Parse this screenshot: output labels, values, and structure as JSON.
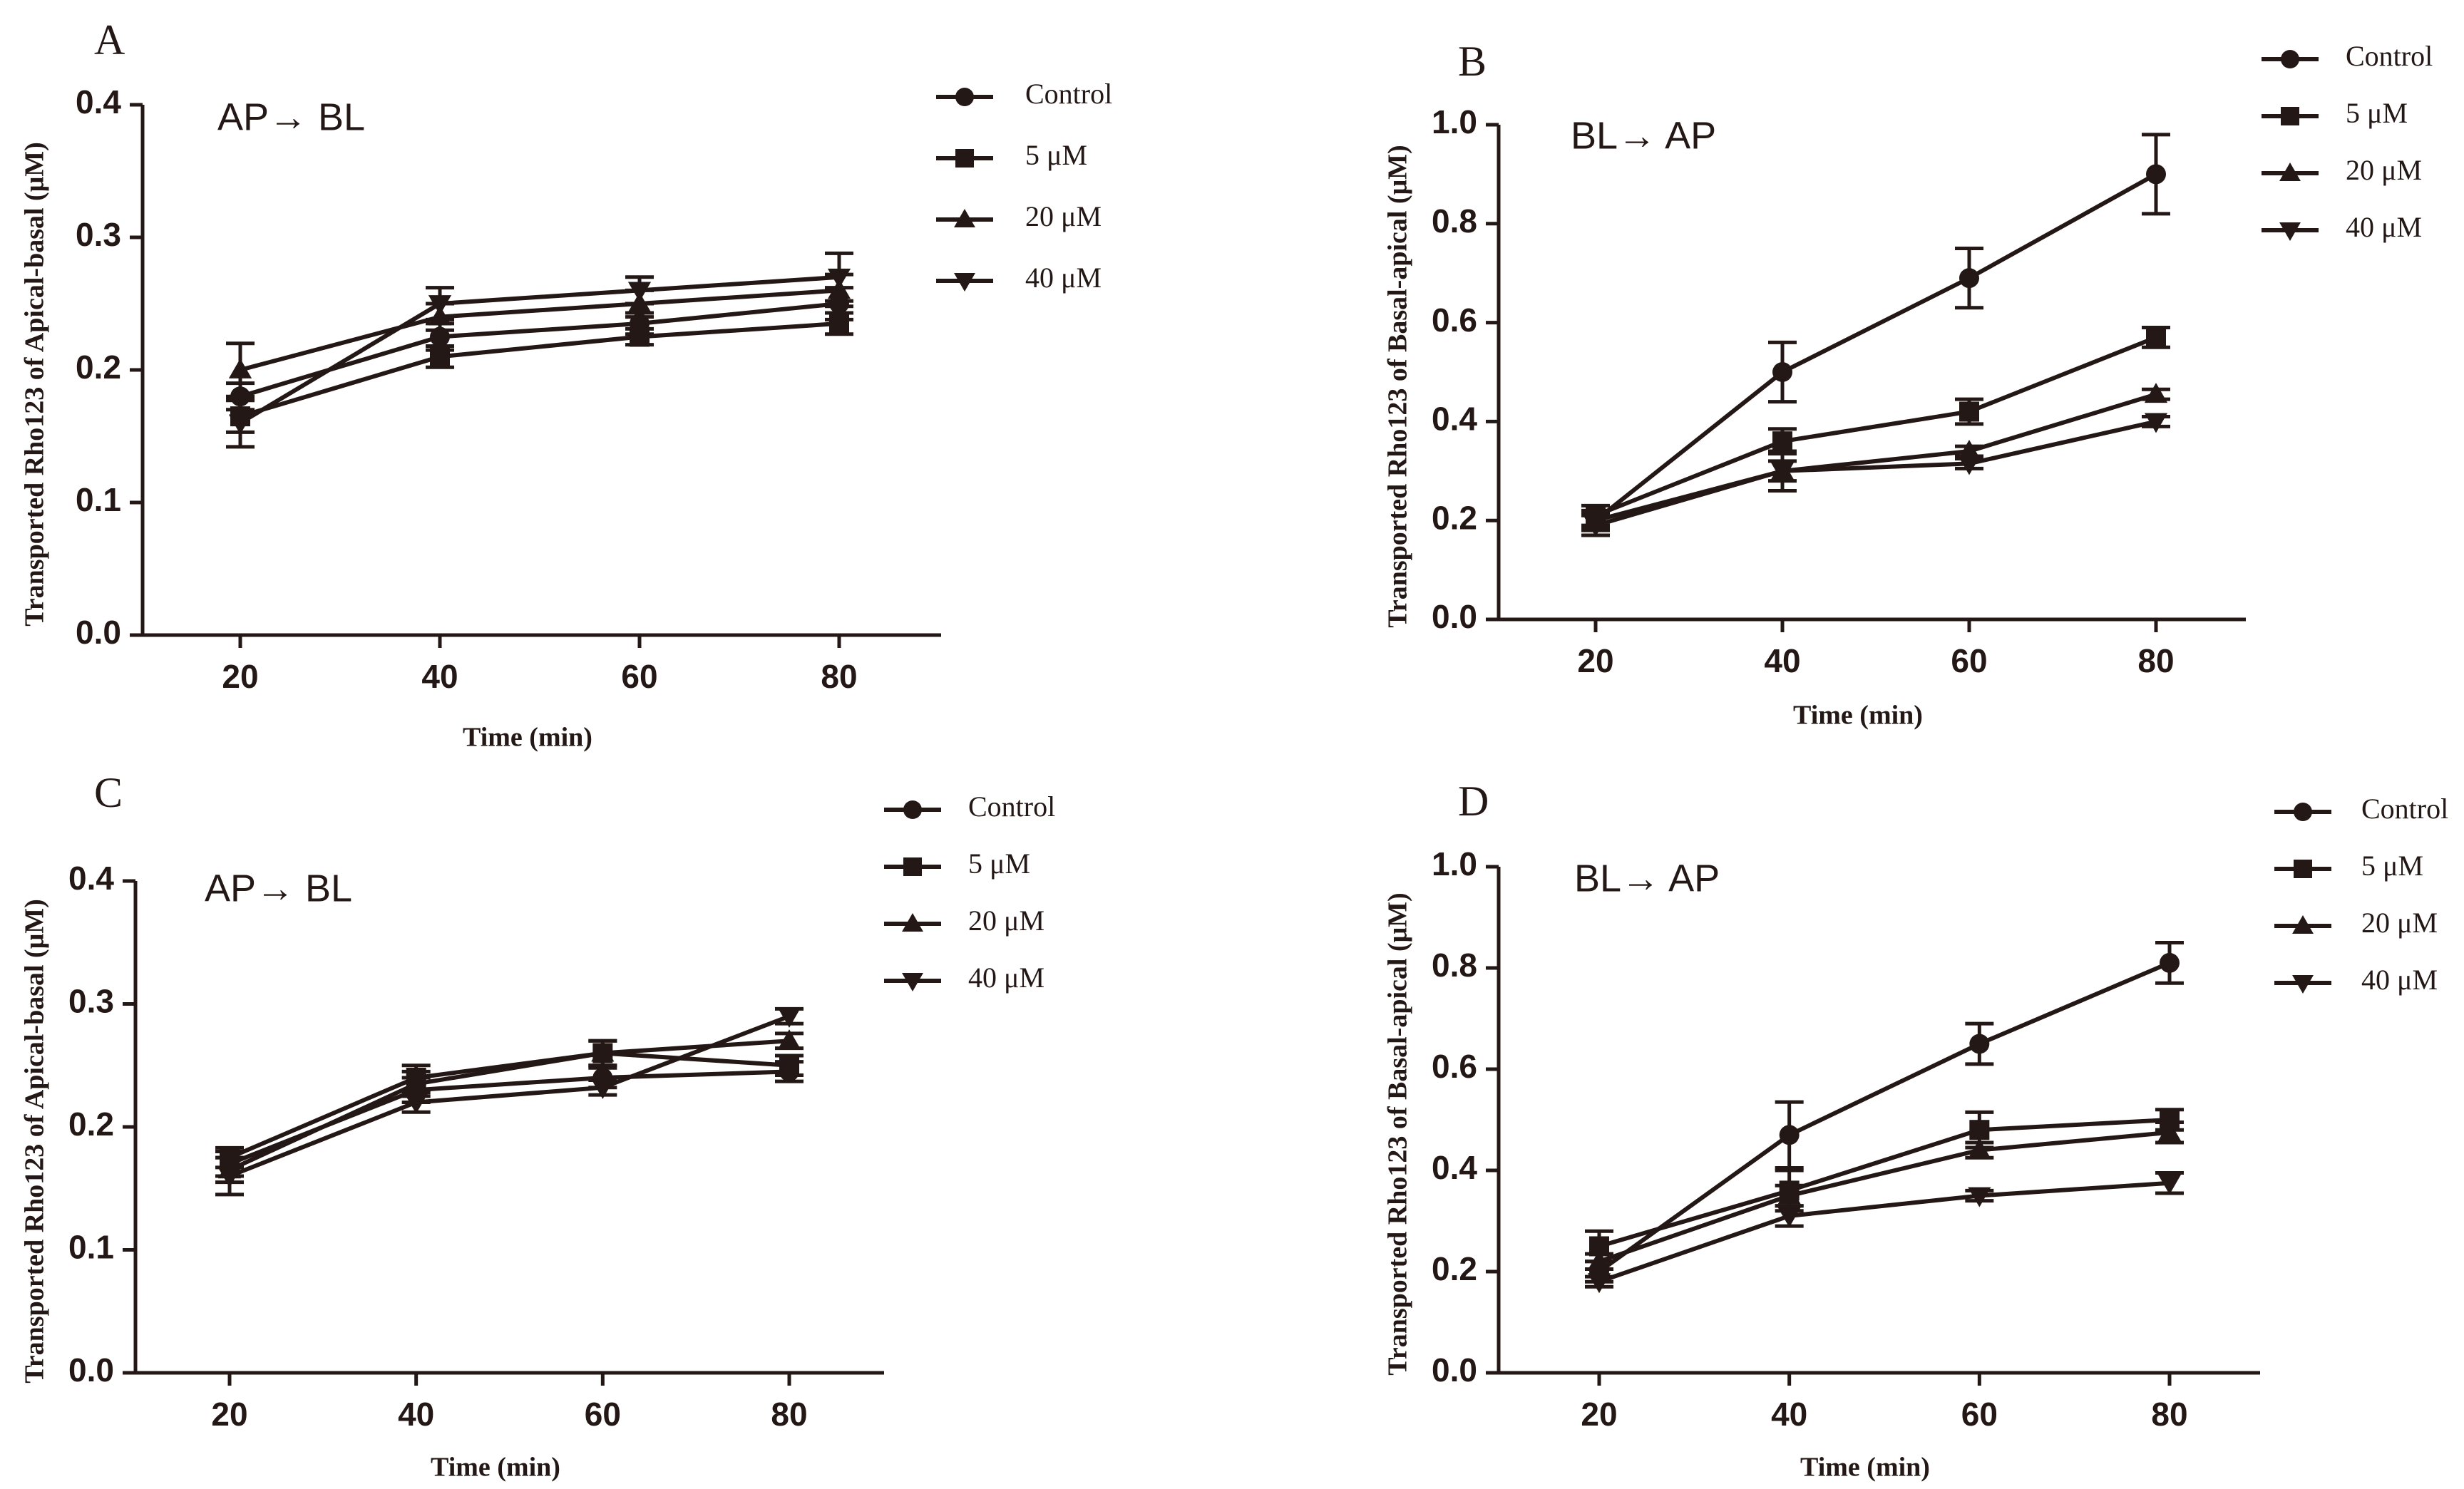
{
  "chart_data": [
    {
      "panel": "A",
      "type": "line",
      "annotation": "AP→ BL",
      "xlabel": "Time (min)",
      "ylabel": "Transported Rho123 of Apical-basal (μM)",
      "x": [
        20,
        40,
        60,
        80
      ],
      "xticks": [
        "20",
        "40",
        "60",
        "80"
      ],
      "ylim": [
        0,
        0.4
      ],
      "yticks": [
        "0.0",
        "0.1",
        "0.2",
        "0.3",
        "0.4"
      ],
      "ytick_values": [
        0,
        0.1,
        0.2,
        0.3,
        0.4
      ],
      "grid": false,
      "legend_position": "right",
      "series": [
        {
          "name": "Control",
          "marker": "circle",
          "values": [
            0.18,
            0.225,
            0.235,
            0.25
          ],
          "errors": [
            0.01,
            0.01,
            0.008,
            0.012
          ]
        },
        {
          "name": "5 μM",
          "marker": "square",
          "values": [
            0.165,
            0.21,
            0.225,
            0.235
          ],
          "errors": [
            0.012,
            0.008,
            0.006,
            0.008
          ]
        },
        {
          "name": "20 μM",
          "marker": "triangle-up",
          "values": [
            0.2,
            0.24,
            0.25,
            0.26
          ],
          "errors": [
            0.02,
            0.01,
            0.01,
            0.012
          ]
        },
        {
          "name": "40 μM",
          "marker": "triangle-down",
          "values": [
            0.16,
            0.25,
            0.26,
            0.27
          ],
          "errors": [
            0.018,
            0.012,
            0.01,
            0.018
          ]
        }
      ]
    },
    {
      "panel": "B",
      "type": "line",
      "annotation": "BL→ AP",
      "xlabel": "Time (min)",
      "ylabel": "Transported Rho123 of Basal-apical (μM)",
      "x": [
        20,
        40,
        60,
        80
      ],
      "xticks": [
        "20",
        "40",
        "60",
        "80"
      ],
      "ylim": [
        0,
        1.0
      ],
      "yticks": [
        "0.0",
        "0.2",
        "0.4",
        "0.6",
        "0.8",
        "1.0"
      ],
      "ytick_values": [
        0,
        0.2,
        0.4,
        0.6,
        0.8,
        1.0
      ],
      "grid": false,
      "legend_position": "top-right",
      "series": [
        {
          "name": "Control",
          "marker": "circle",
          "values": [
            0.2,
            0.5,
            0.69,
            0.9
          ],
          "errors": [
            0.02,
            0.06,
            0.06,
            0.08
          ]
        },
        {
          "name": "5 μM",
          "marker": "square",
          "values": [
            0.21,
            0.36,
            0.42,
            0.57
          ],
          "errors": [
            0.02,
            0.025,
            0.025,
            0.02
          ]
        },
        {
          "name": "20 μM",
          "marker": "triangle-up",
          "values": [
            0.2,
            0.3,
            0.34,
            0.455
          ],
          "errors": [
            0.015,
            0.02,
            0.01,
            0.01
          ]
        },
        {
          "name": "40 μM",
          "marker": "triangle-down",
          "values": [
            0.19,
            0.3,
            0.315,
            0.4
          ],
          "errors": [
            0.02,
            0.04,
            0.01,
            0.01
          ]
        }
      ]
    },
    {
      "panel": "C",
      "type": "line",
      "annotation": "AP→ BL",
      "xlabel": "Time (min)",
      "ylabel": "Transported Rho123 of Apical-basal (μM)",
      "x": [
        20,
        40,
        60,
        80
      ],
      "xticks": [
        "20",
        "40",
        "60",
        "80"
      ],
      "ylim": [
        0,
        0.4
      ],
      "yticks": [
        "0.0",
        "0.1",
        "0.2",
        "0.3",
        "0.4"
      ],
      "ytick_values": [
        0,
        0.1,
        0.2,
        0.3,
        0.4
      ],
      "grid": false,
      "legend_position": "right",
      "series": [
        {
          "name": "Control",
          "marker": "circle",
          "values": [
            0.17,
            0.23,
            0.24,
            0.245
          ],
          "errors": [
            0.01,
            0.01,
            0.008,
            0.008
          ]
        },
        {
          "name": "5 μM",
          "marker": "square",
          "values": [
            0.175,
            0.24,
            0.26,
            0.25
          ],
          "errors": [
            0.008,
            0.01,
            0.01,
            0.008
          ]
        },
        {
          "name": "20 μM",
          "marker": "triangle-up",
          "values": [
            0.165,
            0.235,
            0.26,
            0.27
          ],
          "errors": [
            0.01,
            0.01,
            0.01,
            0.006
          ]
        },
        {
          "name": "40 μM",
          "marker": "triangle-down",
          "values": [
            0.16,
            0.22,
            0.232,
            0.29
          ],
          "errors": [
            0.015,
            0.008,
            0.006,
            0.006
          ]
        }
      ]
    },
    {
      "panel": "D",
      "type": "line",
      "annotation": "BL→ AP",
      "xlabel": "Time (min)",
      "ylabel": "Transported Rho123 of Basal-apical (μM)",
      "x": [
        20,
        40,
        60,
        80
      ],
      "xticks": [
        "20",
        "40",
        "60",
        "80"
      ],
      "ylim": [
        0,
        1.0
      ],
      "yticks": [
        "0.0",
        "0.2",
        "0.4",
        "0.6",
        "0.8",
        "1.0"
      ],
      "ytick_values": [
        0,
        0.2,
        0.4,
        0.6,
        0.8,
        1.0
      ],
      "grid": false,
      "legend_position": "top-right",
      "series": [
        {
          "name": "Control",
          "marker": "circle",
          "values": [
            0.2,
            0.47,
            0.65,
            0.81
          ],
          "errors": [
            0.02,
            0.065,
            0.04,
            0.04
          ]
        },
        {
          "name": "5 μM",
          "marker": "square",
          "values": [
            0.25,
            0.36,
            0.48,
            0.5
          ],
          "errors": [
            0.03,
            0.04,
            0.035,
            0.02
          ]
        },
        {
          "name": "20 μM",
          "marker": "triangle-up",
          "values": [
            0.22,
            0.35,
            0.44,
            0.475
          ],
          "errors": [
            0.015,
            0.02,
            0.015,
            0.02
          ]
        },
        {
          "name": "40 μM",
          "marker": "triangle-down",
          "values": [
            0.18,
            0.31,
            0.35,
            0.375
          ],
          "errors": [
            0.01,
            0.02,
            0.01,
            0.02
          ]
        }
      ]
    }
  ]
}
